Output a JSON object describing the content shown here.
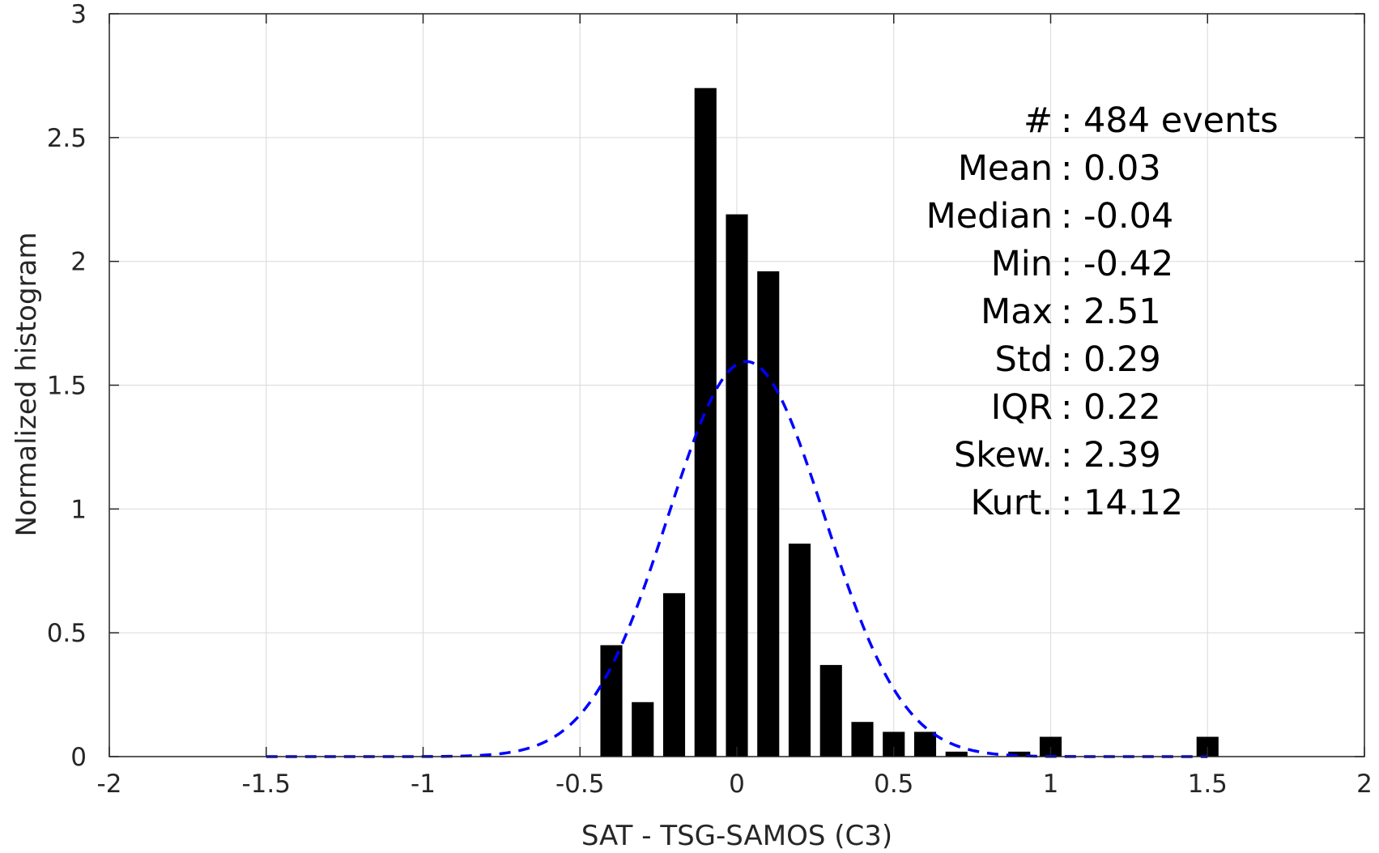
{
  "chart_data": {
    "type": "bar",
    "title": "",
    "xlabel": "SAT - TSG-SAMOS (C3)",
    "ylabel": "Normalized histogram",
    "xlim": [
      -2,
      2
    ],
    "ylim": [
      0,
      3
    ],
    "grid": true,
    "x_ticks": [
      -2,
      -1.5,
      -1,
      -0.5,
      0,
      0.5,
      1,
      1.5,
      2
    ],
    "x_tick_labels": [
      "-2",
      "-1.5",
      "-1",
      "-0.5",
      "0",
      "0.5",
      "1",
      "1.5",
      "2"
    ],
    "y_ticks": [
      0,
      0.5,
      1,
      1.5,
      2,
      2.5,
      3
    ],
    "y_tick_labels": [
      "0",
      "0.5",
      "1",
      "1.5",
      "2",
      "2.5",
      "3"
    ],
    "bin_width": 0.1,
    "bars": [
      {
        "x": -0.4,
        "value": 0.45
      },
      {
        "x": -0.3,
        "value": 0.22
      },
      {
        "x": -0.2,
        "value": 0.66
      },
      {
        "x": -0.1,
        "value": 2.7
      },
      {
        "x": 0.0,
        "value": 2.19
      },
      {
        "x": 0.1,
        "value": 1.96
      },
      {
        "x": 0.2,
        "value": 0.86
      },
      {
        "x": 0.3,
        "value": 0.37
      },
      {
        "x": 0.4,
        "value": 0.14
      },
      {
        "x": 0.5,
        "value": 0.1
      },
      {
        "x": 0.6,
        "value": 0.1
      },
      {
        "x": 0.7,
        "value": 0.02
      },
      {
        "x": 0.9,
        "value": 0.02
      },
      {
        "x": 1.0,
        "value": 0.08
      },
      {
        "x": 1.5,
        "value": 0.08
      }
    ],
    "fit_curve": {
      "style": "dashed",
      "color": "#0000ff",
      "mean": 0.03,
      "std": 0.25,
      "x_range": [
        -1.5,
        1.5
      ]
    },
    "bar_color": "#000000",
    "annotations": [
      {
        "label": "#  ",
        "sep": ":",
        "value": "484 events"
      },
      {
        "label": "Mean",
        "sep": ":",
        "value": "0.03"
      },
      {
        "label": "Median",
        "sep": ":",
        "value": "-0.04"
      },
      {
        "label": "Min",
        "sep": ":",
        "value": "-0.42"
      },
      {
        "label": "Max",
        "sep": ":",
        "value": "2.51"
      },
      {
        "label": "Std",
        "sep": ":",
        "value": "0.29"
      },
      {
        "label": "IQR",
        "sep": ":",
        "value": "0.22"
      },
      {
        "label": "Skew.",
        "sep": ":",
        "value": "2.39"
      },
      {
        "label": "Kurt.",
        "sep": ":",
        "value": "14.12"
      }
    ]
  }
}
